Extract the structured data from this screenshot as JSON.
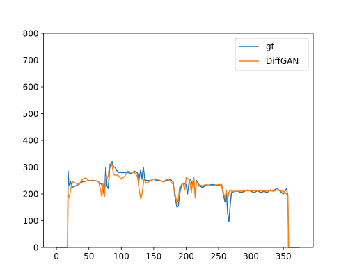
{
  "chart_data": {
    "type": "line",
    "title": "",
    "xlabel": "",
    "ylabel": "",
    "xlim": [
      -20,
      396
    ],
    "ylim": [
      0,
      800
    ],
    "xticks": [
      0,
      50,
      100,
      150,
      200,
      250,
      300,
      350
    ],
    "yticks": [
      0,
      100,
      200,
      300,
      400,
      500,
      600,
      700,
      800
    ],
    "grid": false,
    "legend_position": "top-right",
    "series": [
      {
        "name": "gt",
        "color": "#1f77b4",
        "points": [
          [
            0,
            0
          ],
          [
            17,
            0
          ],
          [
            18,
            285
          ],
          [
            19,
            240
          ],
          [
            20,
            230
          ],
          [
            22,
            245
          ],
          [
            24,
            225
          ],
          [
            30,
            230
          ],
          [
            40,
            245
          ],
          [
            50,
            250
          ],
          [
            60,
            250
          ],
          [
            65,
            245
          ],
          [
            70,
            235
          ],
          [
            72,
            215
          ],
          [
            74,
            190
          ],
          [
            76,
            300
          ],
          [
            78,
            230
          ],
          [
            80,
            220
          ],
          [
            82,
            295
          ],
          [
            84,
            315
          ],
          [
            86,
            320
          ],
          [
            88,
            300
          ],
          [
            90,
            300
          ],
          [
            95,
            280
          ],
          [
            100,
            280
          ],
          [
            110,
            280
          ],
          [
            115,
            275
          ],
          [
            120,
            285
          ],
          [
            125,
            278
          ],
          [
            127,
            250
          ],
          [
            130,
            290
          ],
          [
            132,
            255
          ],
          [
            134,
            300
          ],
          [
            136,
            260
          ],
          [
            138,
            250
          ],
          [
            145,
            250
          ],
          [
            150,
            255
          ],
          [
            155,
            250
          ],
          [
            160,
            250
          ],
          [
            165,
            245
          ],
          [
            170,
            250
          ],
          [
            175,
            255
          ],
          [
            180,
            245
          ],
          [
            183,
            185
          ],
          [
            186,
            150
          ],
          [
            188,
            155
          ],
          [
            190,
            200
          ],
          [
            193,
            235
          ],
          [
            196,
            240
          ],
          [
            200,
            235
          ],
          [
            202,
            200
          ],
          [
            205,
            250
          ],
          [
            207,
            255
          ],
          [
            210,
            230
          ],
          [
            212,
            245
          ],
          [
            214,
            190
          ],
          [
            216,
            250
          ],
          [
            220,
            230
          ],
          [
            225,
            225
          ],
          [
            230,
            230
          ],
          [
            240,
            235
          ],
          [
            250,
            232
          ],
          [
            255,
            230
          ],
          [
            258,
            190
          ],
          [
            260,
            170
          ],
          [
            262,
            210
          ],
          [
            264,
            130
          ],
          [
            266,
            95
          ],
          [
            268,
            160
          ],
          [
            270,
            205
          ],
          [
            275,
            210
          ],
          [
            280,
            210
          ],
          [
            285,
            205
          ],
          [
            290,
            210
          ],
          [
            295,
            215
          ],
          [
            300,
            210
          ],
          [
            305,
            205
          ],
          [
            310,
            212
          ],
          [
            315,
            205
          ],
          [
            320,
            210
          ],
          [
            325,
            205
          ],
          [
            330,
            215
          ],
          [
            335,
            212
          ],
          [
            340,
            222
          ],
          [
            345,
            210
          ],
          [
            350,
            200
          ],
          [
            355,
            220
          ],
          [
            357,
            190
          ],
          [
            358,
            0
          ],
          [
            375,
            0
          ]
        ]
      },
      {
        "name": "DiffGAN",
        "color": "#ff7f0e",
        "points": [
          [
            0,
            0
          ],
          [
            17,
            0
          ],
          [
            18,
            200
          ],
          [
            20,
            185
          ],
          [
            22,
            220
          ],
          [
            25,
            245
          ],
          [
            30,
            240
          ],
          [
            35,
            235
          ],
          [
            40,
            255
          ],
          [
            45,
            260
          ],
          [
            50,
            250
          ],
          [
            55,
            248
          ],
          [
            60,
            250
          ],
          [
            65,
            245
          ],
          [
            68,
            215
          ],
          [
            70,
            190
          ],
          [
            72,
            240
          ],
          [
            74,
            190
          ],
          [
            76,
            265
          ],
          [
            78,
            255
          ],
          [
            80,
            270
          ],
          [
            82,
            310
          ],
          [
            85,
            315
          ],
          [
            88,
            275
          ],
          [
            90,
            270
          ],
          [
            95,
            270
          ],
          [
            100,
            255
          ],
          [
            105,
            265
          ],
          [
            110,
            285
          ],
          [
            115,
            280
          ],
          [
            120,
            280
          ],
          [
            125,
            265
          ],
          [
            127,
            225
          ],
          [
            130,
            180
          ],
          [
            132,
            200
          ],
          [
            135,
            255
          ],
          [
            138,
            240
          ],
          [
            142,
            245
          ],
          [
            145,
            250
          ],
          [
            150,
            255
          ],
          [
            155,
            255
          ],
          [
            160,
            250
          ],
          [
            165,
            245
          ],
          [
            170,
            255
          ],
          [
            175,
            250
          ],
          [
            180,
            235
          ],
          [
            183,
            200
          ],
          [
            186,
            165
          ],
          [
            188,
            180
          ],
          [
            190,
            225
          ],
          [
            195,
            240
          ],
          [
            198,
            215
          ],
          [
            200,
            260
          ],
          [
            205,
            255
          ],
          [
            208,
            205
          ],
          [
            210,
            245
          ],
          [
            212,
            260
          ],
          [
            214,
            185
          ],
          [
            216,
            245
          ],
          [
            220,
            235
          ],
          [
            225,
            230
          ],
          [
            230,
            235
          ],
          [
            240,
            230
          ],
          [
            250,
            235
          ],
          [
            255,
            235
          ],
          [
            258,
            200
          ],
          [
            260,
            185
          ],
          [
            262,
            215
          ],
          [
            264,
            180
          ],
          [
            266,
            205
          ],
          [
            268,
            215
          ],
          [
            270,
            210
          ],
          [
            275,
            210
          ],
          [
            280,
            210
          ],
          [
            290,
            212
          ],
          [
            300,
            212
          ],
          [
            310,
            212
          ],
          [
            320,
            212
          ],
          [
            330,
            212
          ],
          [
            335,
            210
          ],
          [
            340,
            215
          ],
          [
            345,
            212
          ],
          [
            350,
            210
          ],
          [
            355,
            200
          ],
          [
            357,
            192
          ],
          [
            358,
            0
          ],
          [
            375,
            0
          ]
        ]
      }
    ]
  }
}
